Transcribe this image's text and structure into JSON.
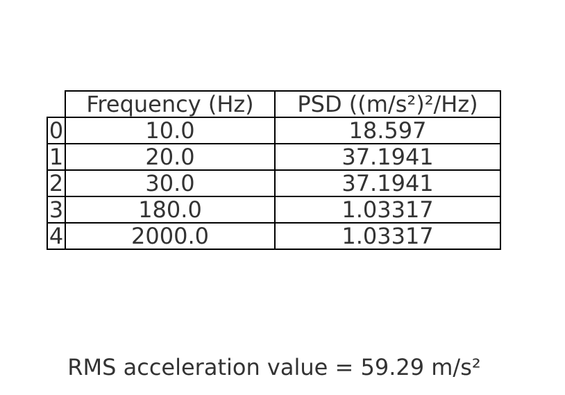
{
  "chart_data": {
    "type": "table",
    "columns": [
      "Frequency (Hz)",
      "PSD ((m/s²)²/Hz)"
    ],
    "rows": [
      {
        "index": "0",
        "frequency": "10.0",
        "psd": "18.597"
      },
      {
        "index": "1",
        "frequency": "20.0",
        "psd": "37.1941"
      },
      {
        "index": "2",
        "frequency": "30.0",
        "psd": "37.1941"
      },
      {
        "index": "3",
        "frequency": "180.0",
        "psd": "1.03317"
      },
      {
        "index": "4",
        "frequency": "2000.0",
        "psd": "1.03317"
      }
    ],
    "caption": "RMS acceleration value = 59.29 m/s²"
  }
}
